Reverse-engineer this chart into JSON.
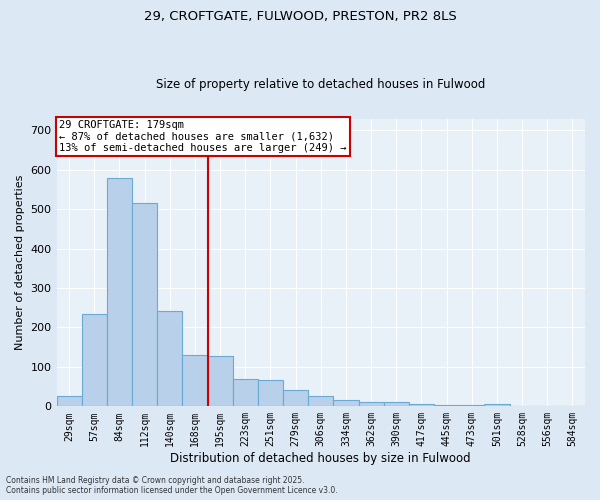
{
  "title_line1": "29, CROFTGATE, FULWOOD, PRESTON, PR2 8LS",
  "title_line2": "Size of property relative to detached houses in Fulwood",
  "xlabel": "Distribution of detached houses by size in Fulwood",
  "ylabel": "Number of detached properties",
  "categories": [
    "29sqm",
    "57sqm",
    "84sqm",
    "112sqm",
    "140sqm",
    "168sqm",
    "195sqm",
    "223sqm",
    "251sqm",
    "279sqm",
    "306sqm",
    "334sqm",
    "362sqm",
    "390sqm",
    "417sqm",
    "445sqm",
    "473sqm",
    "501sqm",
    "528sqm",
    "556sqm",
    "584sqm"
  ],
  "values": [
    27,
    234,
    580,
    515,
    241,
    130,
    128,
    70,
    68,
    42,
    27,
    15,
    10,
    10,
    5,
    4,
    4,
    5,
    0,
    2,
    2
  ],
  "bar_color": "#b8d0ea",
  "bar_edge_color": "#6aaad4",
  "vline_color": "#cc0000",
  "annotation_title": "29 CROFTGATE: 179sqm",
  "annotation_line1": "← 87% of detached houses are smaller (1,632)",
  "annotation_line2": "13% of semi-detached houses are larger (249) →",
  "annotation_box_color": "#cc0000",
  "annotation_bg": "#ffffff",
  "ylim": [
    0,
    730
  ],
  "yticks": [
    0,
    100,
    200,
    300,
    400,
    500,
    600,
    700
  ],
  "footer_line1": "Contains HM Land Registry data © Crown copyright and database right 2025.",
  "footer_line2": "Contains public sector information licensed under the Open Government Licence v3.0.",
  "bg_color": "#dde8f5",
  "plot_bg_color": "#e8f0f8",
  "grid_color": "#ffffff"
}
